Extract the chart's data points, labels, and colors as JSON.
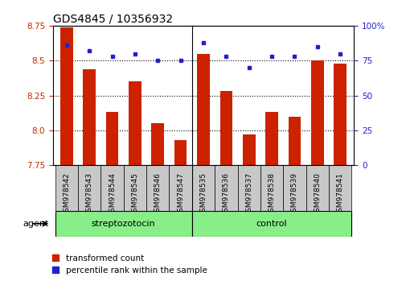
{
  "title": "GDS4845 / 10356932",
  "samples": [
    "GSM978542",
    "GSM978543",
    "GSM978544",
    "GSM978545",
    "GSM978546",
    "GSM978547",
    "GSM978535",
    "GSM978536",
    "GSM978537",
    "GSM978538",
    "GSM978539",
    "GSM978540",
    "GSM978541"
  ],
  "bar_values": [
    8.74,
    8.44,
    8.13,
    8.35,
    8.05,
    7.93,
    8.55,
    8.28,
    7.97,
    8.13,
    8.1,
    8.5,
    8.48
  ],
  "percentile_values": [
    86,
    82,
    78,
    80,
    75,
    75,
    88,
    78,
    70,
    78,
    78,
    85,
    80
  ],
  "groups": [
    {
      "label": "streptozotocin",
      "start": 0,
      "end": 6
    },
    {
      "label": "control",
      "start": 6,
      "end": 13
    }
  ],
  "group_divider": 6,
  "ylim_left": [
    7.75,
    8.75
  ],
  "ylim_right": [
    0,
    100
  ],
  "yticks_left": [
    7.75,
    8.0,
    8.25,
    8.5,
    8.75
  ],
  "yticks_right": [
    0,
    25,
    50,
    75,
    100
  ],
  "bar_color": "#CC2200",
  "dot_color": "#2222CC",
  "grid_color": "#000000",
  "green_color": "#88EE88",
  "gray_color": "#C8C8C8",
  "agent_label": "agent",
  "legend_bar_label": "transformed count",
  "legend_dot_label": "percentile rank within the sample",
  "bar_width": 0.55,
  "title_fontsize": 10,
  "tick_fontsize": 7.5,
  "legend_fontsize": 7.5
}
